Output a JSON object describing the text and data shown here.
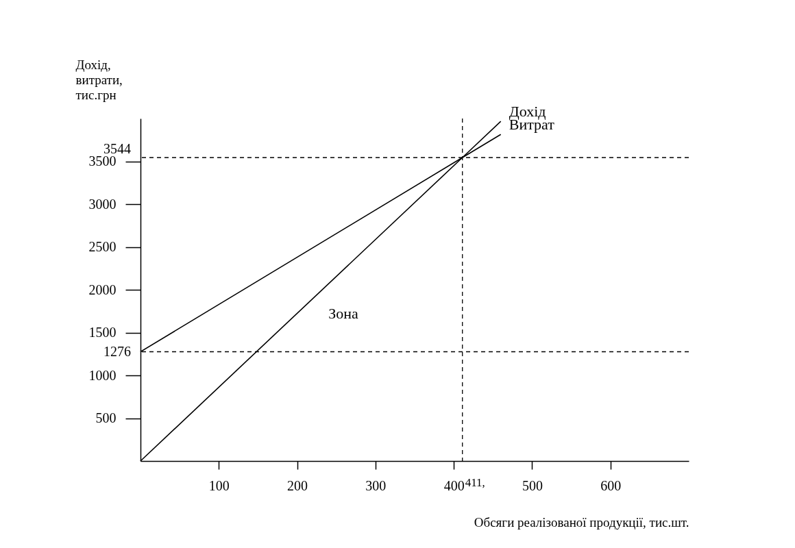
{
  "chart_data": {
    "type": "line",
    "xlabel": "Обсяги реалізованої продукції, тис.шт.",
    "ylabel": "Дохід, витрати, тис.грн",
    "x": [
      0,
      411,
      460
    ],
    "xlim": [
      0,
      700
    ],
    "ylim": [
      0,
      4000
    ],
    "xticks": [
      100,
      200,
      300,
      400,
      500,
      600
    ],
    "yticks": [
      500,
      1000,
      1500,
      2000,
      2500,
      3000,
      3500
    ],
    "grid": false,
    "legend": false,
    "marker": "none",
    "line_style": "solid",
    "series": [
      {
        "name": "Дохід",
        "color": "#000000",
        "values": [
          0,
          3544,
          3967
        ]
      },
      {
        "name": "Витрат",
        "color": "#000000",
        "values": [
          1276,
          3544,
          3814
        ]
      }
    ],
    "ref_lines": [
      {
        "axis": "y",
        "value": 3544,
        "label": "3544",
        "line_style": "dashed",
        "color": "#000000"
      },
      {
        "axis": "y",
        "value": 1276,
        "label": "1276",
        "line_style": "dashed",
        "color": "#000000"
      },
      {
        "axis": "x",
        "value": 411,
        "label": "411,",
        "line_style": "dashed",
        "color": "#000000"
      }
    ],
    "annotations": [
      "Зона"
    ]
  }
}
